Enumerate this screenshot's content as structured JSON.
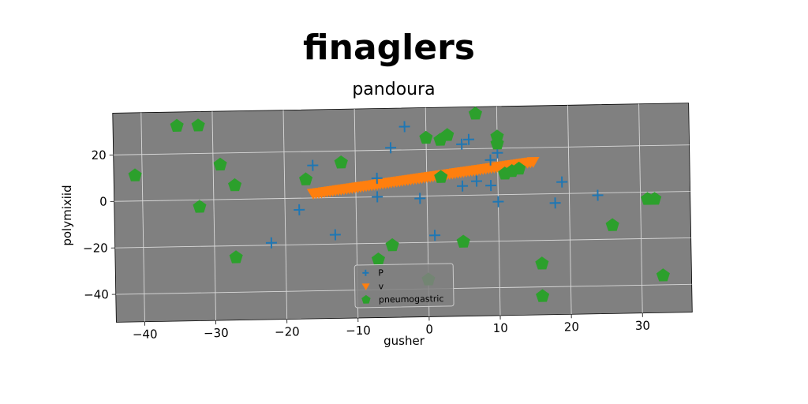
{
  "chart_data": {
    "type": "scatter",
    "title": "finaglers",
    "subtitle": "pandoura",
    "xlabel": "gusher",
    "ylabel": "polymixiid",
    "xlim": [
      -44,
      37
    ],
    "ylim": [
      -52,
      38
    ],
    "xticks": [
      -40,
      -30,
      -20,
      -10,
      0,
      10,
      20,
      30
    ],
    "yticks": [
      -40,
      -20,
      0,
      20
    ],
    "grid": true,
    "legend_position": "lower-center",
    "background": "#808080",
    "series": [
      {
        "name": "P",
        "marker": "plus",
        "color": "#1f77b4",
        "points": [
          [
            -3,
            30
          ],
          [
            6,
            24
          ],
          [
            5,
            22
          ],
          [
            -5,
            21
          ],
          [
            10,
            18
          ],
          [
            -16,
            14
          ],
          [
            9,
            15
          ],
          [
            -7,
            8
          ],
          [
            7,
            6
          ],
          [
            -7,
            0
          ],
          [
            5,
            4
          ],
          [
            9,
            4
          ],
          [
            19,
            5
          ],
          [
            -1,
            -1
          ],
          [
            10,
            -3
          ],
          [
            18,
            -4
          ],
          [
            24,
            -1
          ],
          [
            -18,
            -5
          ],
          [
            -13,
            -16
          ],
          [
            1,
            -17
          ],
          [
            -22,
            -19
          ]
        ]
      },
      {
        "name": "v",
        "marker": "triangle-down",
        "color": "#ff7f0e",
        "line_from": [
          -16,
          2
        ],
        "line_to": [
          15,
          14
        ],
        "count": 80
      },
      {
        "name": "pneumogastric",
        "marker": "pentagon",
        "color": "#2ca02c",
        "points": [
          [
            -35,
            32
          ],
          [
            -32,
            32
          ],
          [
            7,
            35
          ],
          [
            -41,
            11
          ],
          [
            -29,
            15
          ],
          [
            -27,
            6
          ],
          [
            -32,
            -3
          ],
          [
            -17,
            8
          ],
          [
            -12,
            15
          ],
          [
            0,
            25
          ],
          [
            3,
            26
          ],
          [
            2,
            24
          ],
          [
            10,
            25
          ],
          [
            10,
            22
          ],
          [
            2,
            8
          ],
          [
            12,
            10
          ],
          [
            11,
            9
          ],
          [
            13,
            11
          ],
          [
            -5,
            -21
          ],
          [
            5,
            -20
          ],
          [
            -7,
            -27
          ],
          [
            -27,
            -25
          ],
          [
            16,
            -30
          ],
          [
            26,
            -14
          ],
          [
            31,
            -3
          ],
          [
            32,
            -3
          ],
          [
            33,
            -36
          ],
          [
            16,
            -44
          ],
          [
            0,
            -36
          ]
        ]
      }
    ]
  }
}
